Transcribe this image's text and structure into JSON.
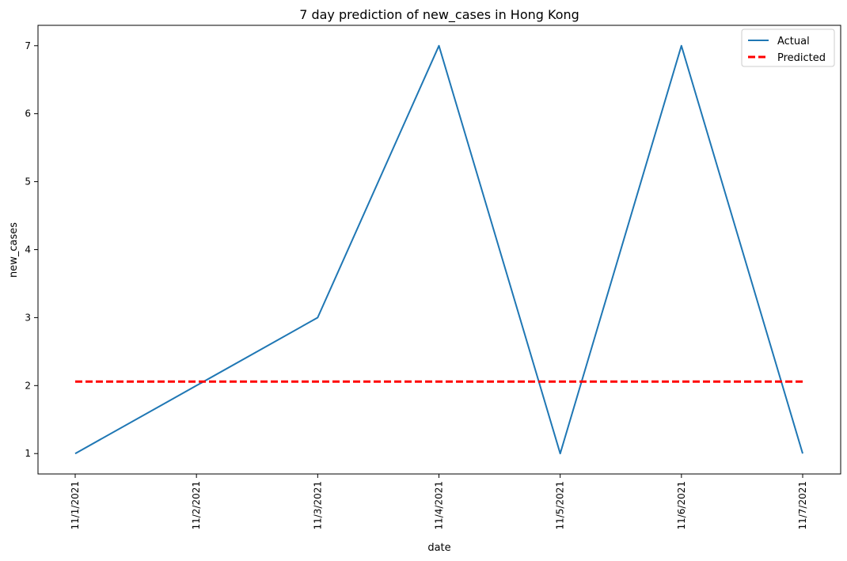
{
  "chart_data": {
    "type": "line",
    "title": "7 day prediction of new_cases in Hong Kong",
    "xlabel": "date",
    "ylabel": "new_cases",
    "x": [
      "11/1/2021",
      "11/2/2021",
      "11/3/2021",
      "11/4/2021",
      "11/5/2021",
      "11/6/2021",
      "11/7/2021"
    ],
    "ylim": [
      0.7,
      7.3
    ],
    "yticks": [
      1,
      2,
      3,
      4,
      5,
      6,
      7
    ],
    "grid": false,
    "legend_position": "top-right",
    "series": [
      {
        "name": "Actual",
        "values": [
          1,
          2,
          3,
          7,
          1,
          7,
          1
        ],
        "color": "#1f77b4",
        "style": "solid"
      },
      {
        "name": "Predicted",
        "values": [
          2.06,
          2.06,
          2.06,
          2.06,
          2.06,
          2.06,
          2.06
        ],
        "color": "#ff0000",
        "style": "dashed"
      }
    ]
  }
}
